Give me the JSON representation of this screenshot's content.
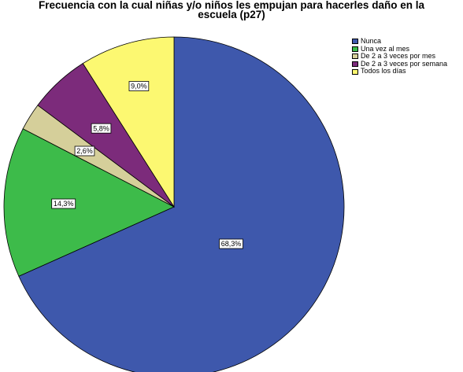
{
  "chart_data": {
    "type": "pie",
    "title": "Frecuencia  con la cual niñas y/o niños les empujan para hacerles daño en la\nescuela (p27)",
    "slices": [
      {
        "label": "Nunca",
        "value": 68.3,
        "value_label": "68,3%",
        "color": "#3e58ac"
      },
      {
        "label": "Una vez al mes",
        "value": 14.3,
        "value_label": "14,3%",
        "color": "#3dbb4a"
      },
      {
        "label": "De 2 a 3 veces por mes",
        "value": 2.6,
        "value_label": "2,6%",
        "color": "#d5cf9a"
      },
      {
        "label": "De 2 a 3 veces por semana",
        "value": 5.8,
        "value_label": "5,8%",
        "color": "#7c2b7b"
      },
      {
        "label": "Todos los días",
        "value": 9.0,
        "value_label": "9,0%",
        "color": "#fcf871"
      }
    ],
    "start_angle": "12 o'clock",
    "direction": "clockwise",
    "legend_position": "top-right"
  }
}
